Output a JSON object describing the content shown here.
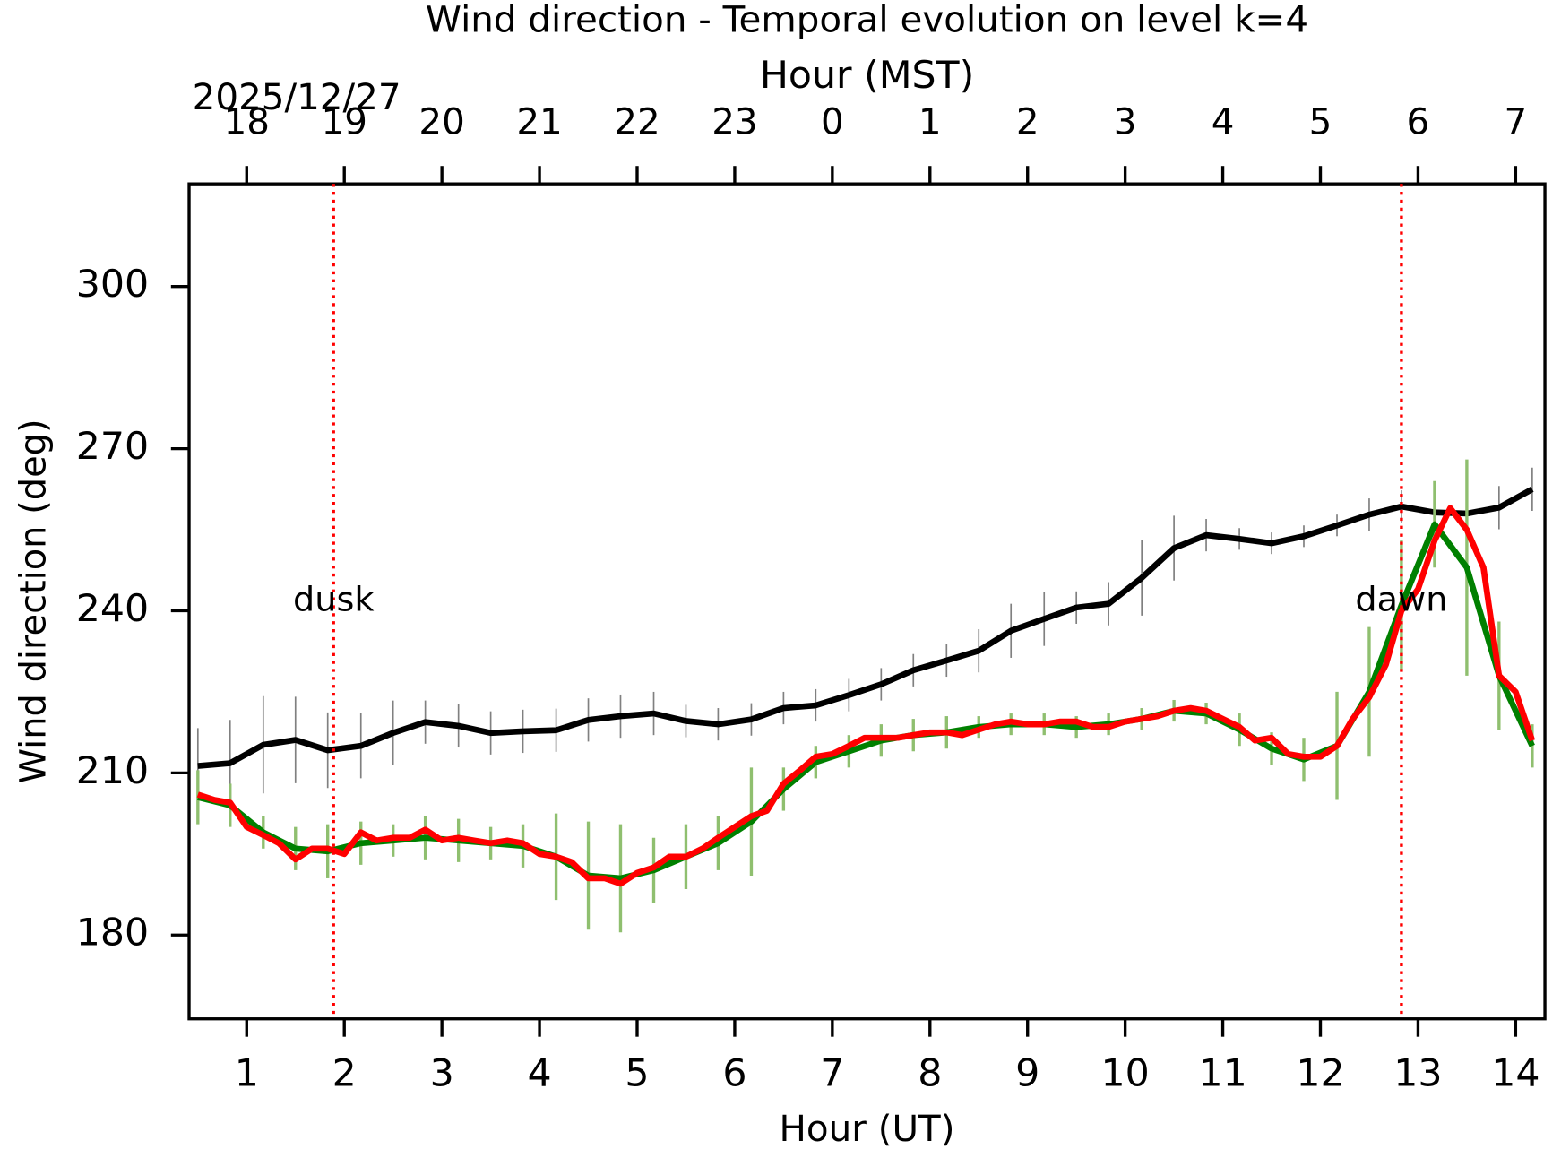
{
  "chart_data": {
    "type": "line",
    "title": "Wind direction - Temporal evolution on level k=4",
    "x2label": "Hour (MST)",
    "date_label": "2025/12/27",
    "xlabel": "Hour (UT)",
    "ylabel": "Wind direction (deg)",
    "xlim": [
      0.41,
      14.3
    ],
    "ylim": [
      164.5,
      319
    ],
    "xticks": [
      1,
      2,
      3,
      4,
      5,
      6,
      7,
      8,
      9,
      10,
      11,
      12,
      13,
      14
    ],
    "x2ticks": [
      {
        "value": 1,
        "label": "18"
      },
      {
        "value": 2,
        "label": "19"
      },
      {
        "value": 3,
        "label": "20"
      },
      {
        "value": 4,
        "label": "21"
      },
      {
        "value": 5,
        "label": "22"
      },
      {
        "value": 6,
        "label": "23"
      },
      {
        "value": 7,
        "label": "0"
      },
      {
        "value": 8,
        "label": "1"
      },
      {
        "value": 9,
        "label": "2"
      },
      {
        "value": 10,
        "label": "3"
      },
      {
        "value": 11,
        "label": "4"
      },
      {
        "value": 12,
        "label": "5"
      },
      {
        "value": 13,
        "label": "6"
      },
      {
        "value": 14,
        "label": "7"
      }
    ],
    "yticks": [
      180,
      210,
      240,
      270,
      300
    ],
    "vlines": [
      {
        "x": 1.89,
        "label": "dusk",
        "color": "#ff0000"
      },
      {
        "x": 12.83,
        "label": "dawn",
        "color": "#ff0000"
      }
    ],
    "series": [
      {
        "color": "#000000",
        "error_color": "#808080",
        "x": [
          0.5,
          0.83,
          1.17,
          1.5,
          1.83,
          2.17,
          2.5,
          2.83,
          3.17,
          3.5,
          3.83,
          4.17,
          4.5,
          4.83,
          5.17,
          5.5,
          5.83,
          6.17,
          6.5,
          6.83,
          7.17,
          7.5,
          7.83,
          8.17,
          8.5,
          8.83,
          9.17,
          9.5,
          9.83,
          10.17,
          10.5,
          10.83,
          11.17,
          11.5,
          11.83,
          12.17,
          12.5,
          12.83,
          13.17,
          13.5,
          13.83,
          14.17
        ],
        "values": [
          211.3,
          211.8,
          215.2,
          216.1,
          214.2,
          215,
          217.4,
          219.4,
          218.7,
          217.4,
          217.7,
          217.9,
          219.8,
          220.5,
          221,
          219.6,
          219,
          219.9,
          222,
          222.5,
          224.4,
          226.4,
          229,
          230.8,
          232.6,
          236.3,
          238.5,
          240.6,
          241.3,
          246.1,
          251.6,
          254,
          253.3,
          252.5,
          253.8,
          255.8,
          257.8,
          259.3,
          258.2,
          258,
          259.1,
          262.5
        ],
        "errors": [
          7,
          8,
          9,
          8,
          7,
          6,
          6,
          4,
          4,
          4,
          4,
          4,
          4,
          4,
          4,
          3,
          3,
          3,
          3,
          3,
          3,
          3,
          3,
          3,
          4,
          5,
          5,
          3,
          4,
          7,
          6,
          3,
          2,
          2,
          2,
          2,
          3,
          3,
          3,
          4,
          4,
          4
        ]
      },
      {
        "color": "#008000",
        "error_color": "#8fbf6f",
        "x": [
          0.5,
          0.83,
          1.17,
          1.5,
          1.83,
          2.17,
          2.5,
          2.83,
          3.17,
          3.5,
          3.83,
          4.17,
          4.5,
          4.83,
          5.17,
          5.5,
          5.83,
          6.17,
          6.5,
          6.83,
          7.17,
          7.5,
          7.83,
          8.17,
          8.5,
          8.83,
          9.17,
          9.5,
          9.83,
          10.17,
          10.5,
          10.83,
          11.17,
          11.5,
          11.83,
          12.17,
          12.5,
          12.83,
          13.17,
          13.5,
          13.83,
          14.17
        ],
        "values": [
          205.5,
          204,
          199,
          196,
          195.5,
          197,
          197.5,
          198,
          197.5,
          197,
          196.5,
          194.5,
          191,
          190.5,
          192,
          194.5,
          197,
          201,
          207,
          212,
          214,
          216,
          217,
          217.5,
          218.5,
          219,
          219,
          218.5,
          219,
          220,
          221.5,
          221,
          218,
          214.5,
          212.5,
          215,
          225,
          241,
          256,
          248,
          228,
          215
        ],
        "errors": [
          5,
          4,
          3,
          4,
          5,
          4,
          3,
          4,
          4,
          3,
          4,
          8,
          10,
          10,
          6,
          6,
          5,
          10,
          4,
          3,
          3,
          3,
          3,
          3,
          2,
          2,
          2,
          2,
          2,
          2,
          2,
          2,
          3,
          3,
          4,
          10,
          12,
          12,
          8,
          20,
          10,
          4
        ]
      },
      {
        "color": "#ff0000",
        "x": [
          0.5,
          0.67,
          0.83,
          1,
          1.17,
          1.33,
          1.5,
          1.67,
          1.83,
          2,
          2.17,
          2.33,
          2.5,
          2.67,
          2.83,
          3,
          3.17,
          3.33,
          3.5,
          3.67,
          3.83,
          4,
          4.17,
          4.33,
          4.5,
          4.67,
          4.83,
          5,
          5.17,
          5.33,
          5.5,
          5.67,
          5.83,
          6,
          6.17,
          6.33,
          6.5,
          6.67,
          6.83,
          7,
          7.17,
          7.33,
          7.5,
          7.67,
          7.83,
          8,
          8.17,
          8.33,
          8.5,
          8.67,
          8.83,
          9,
          9.17,
          9.33,
          9.5,
          9.67,
          9.83,
          10,
          10.17,
          10.33,
          10.5,
          10.67,
          10.83,
          11,
          11.17,
          11.33,
          11.5,
          11.67,
          11.83,
          12,
          12.17,
          12.33,
          12.5,
          12.67,
          12.83,
          13,
          13.17,
          13.33,
          13.5,
          13.67,
          13.83,
          14,
          14.17
        ],
        "values": [
          206,
          205,
          204.5,
          200,
          198.5,
          197,
          194,
          196,
          196,
          195,
          199,
          197.5,
          198,
          198,
          199.5,
          197.5,
          198,
          197.5,
          197,
          197.5,
          197,
          195,
          194.5,
          193.5,
          190.5,
          190.5,
          189.5,
          191.5,
          192.5,
          194.5,
          194.5,
          196,
          198,
          200,
          202,
          203,
          208,
          210.5,
          213,
          213.5,
          215,
          216.5,
          216.5,
          216.5,
          217,
          217.5,
          217.5,
          217,
          218,
          219,
          219.5,
          219,
          219,
          219.5,
          219.5,
          218.5,
          218.5,
          219.5,
          220,
          220.5,
          221.5,
          222,
          221.5,
          220,
          218.5,
          216,
          216.5,
          213.5,
          213,
          213,
          215,
          220,
          224,
          230,
          240,
          244,
          253,
          259,
          255,
          248,
          228,
          225,
          216
        ]
      }
    ]
  }
}
